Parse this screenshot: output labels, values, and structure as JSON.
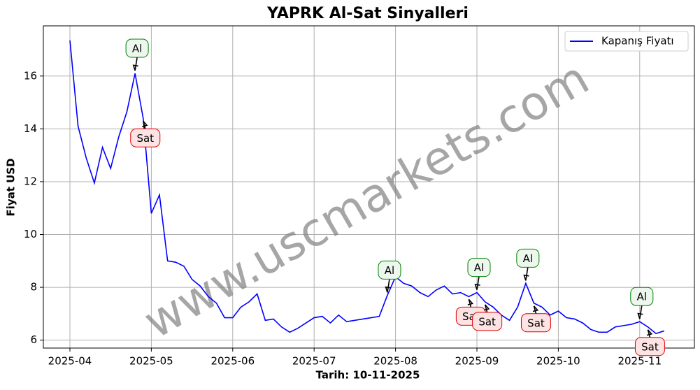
{
  "chart_data": {
    "type": "line",
    "title": "YAPRK Al-Sat Sinyalleri",
    "x_label": "Tarih: 10-11-2025",
    "y_label": "Fiyat USD",
    "watermark": "www.uscmarkets.com",
    "categories": [
      "2025-04",
      null,
      null,
      null,
      null,
      null,
      null,
      null,
      null,
      null,
      "2025-05",
      null,
      null,
      null,
      null,
      null,
      null,
      null,
      null,
      null,
      "2025-06",
      null,
      null,
      null,
      null,
      null,
      null,
      null,
      null,
      null,
      "2025-07",
      null,
      null,
      null,
      null,
      null,
      null,
      null,
      null,
      null,
      "2025-08",
      null,
      null,
      null,
      null,
      null,
      null,
      null,
      null,
      null,
      "2025-09",
      null,
      null,
      null,
      null,
      null,
      null,
      null,
      null,
      null,
      "2025-10",
      null,
      null,
      null,
      null,
      null,
      null,
      null,
      null,
      null,
      "2025-11",
      null,
      null,
      null
    ],
    "series": [
      {
        "name": "Kapanış Fiyatı",
        "color": "#0000ff",
        "values": [
          17.35,
          14.1,
          12.9,
          11.95,
          13.3,
          12.5,
          13.7,
          14.65,
          16.1,
          14.4,
          10.8,
          11.5,
          9.0,
          8.95,
          8.8,
          8.3,
          8.05,
          7.65,
          7.4,
          6.85,
          6.85,
          7.25,
          7.45,
          7.75,
          6.75,
          6.8,
          6.5,
          6.3,
          6.45,
          6.65,
          6.85,
          6.9,
          6.65,
          6.95,
          6.7,
          6.75,
          6.8,
          6.85,
          6.9,
          7.7,
          8.4,
          8.15,
          8.05,
          7.8,
          7.65,
          7.9,
          8.05,
          7.75,
          7.8,
          7.65,
          7.8,
          7.45,
          7.25,
          6.95,
          6.75,
          7.25,
          8.15,
          7.4,
          7.25,
          6.95,
          7.1,
          6.85,
          6.8,
          6.65,
          6.4,
          6.3,
          6.3,
          6.5,
          6.55,
          6.6,
          6.7,
          6.5,
          6.25,
          6.35
        ]
      }
    ],
    "signals": [
      {
        "label": "Al",
        "index": 8
      },
      {
        "label": "Sat",
        "index": 9
      },
      {
        "label": "Al",
        "index": 39
      },
      {
        "label": "Sat",
        "index": 49
      },
      {
        "label": "Al",
        "index": 50
      },
      {
        "label": "Sat",
        "index": 51
      },
      {
        "label": "Al",
        "index": 56
      },
      {
        "label": "Sat",
        "index": 57
      },
      {
        "label": "Al",
        "index": 70
      },
      {
        "label": "Sat",
        "index": 71
      }
    ],
    "ylim": [
      5.7,
      17.9
    ],
    "yticks": [
      6,
      8,
      10,
      12,
      14,
      16
    ],
    "grid": true,
    "legend": "upper right"
  }
}
